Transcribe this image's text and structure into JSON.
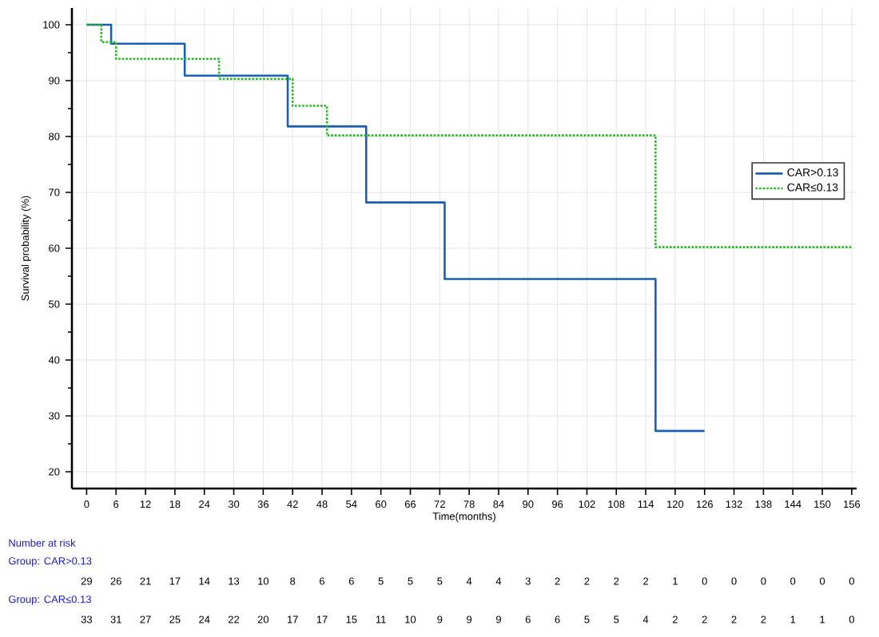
{
  "chart_data": {
    "type": "step",
    "xlabel": "Time(months)",
    "ylabel": "Survival probability (%)",
    "xlim": [
      -3,
      157
    ],
    "ylim": [
      17,
      103
    ],
    "xticks": [
      0,
      6,
      12,
      18,
      24,
      30,
      36,
      42,
      48,
      54,
      60,
      66,
      72,
      78,
      84,
      90,
      96,
      102,
      108,
      114,
      120,
      126,
      132,
      138,
      144,
      150,
      156
    ],
    "yticks": [
      20,
      {
        "value": 25,
        "label": null
      },
      30,
      {
        "value": 35,
        "label": null
      },
      40,
      {
        "value": 45,
        "label": null
      },
      50,
      {
        "value": 55,
        "label": null
      },
      60,
      {
        "value": 65,
        "label": null
      },
      70,
      {
        "value": 75,
        "label": null
      },
      80,
      {
        "value": 85,
        "label": null
      },
      90,
      {
        "value": 95,
        "label": null
      },
      100
    ],
    "grid": true,
    "legend": "right",
    "series": [
      {
        "name": "CAR>0.13",
        "color": "#1a5fb0",
        "line_style": "solid",
        "x": [
          0,
          5,
          20,
          41,
          57,
          73,
          116,
          126
        ],
        "values": [
          100,
          96.6,
          90.9,
          81.8,
          68.2,
          54.5,
          27.3,
          27.3
        ]
      },
      {
        "name": "CAR≤0.13",
        "color": "#22bb22",
        "line_style": "dotted",
        "x": [
          0,
          3,
          6,
          27,
          42,
          49,
          116,
          156
        ],
        "values": [
          100,
          96.9,
          93.9,
          90.3,
          85.5,
          80.2,
          60.2,
          60.2
        ]
      }
    ],
    "annotations": [
      "Number at risk",
      "Group: CAR>0.13",
      "29",
      "26",
      "21",
      "17",
      "14",
      "13",
      "10",
      "8",
      "6",
      "6",
      "5",
      "5",
      "5",
      "4",
      "4",
      "3",
      "2",
      "2",
      "2",
      "2",
      "1",
      "0",
      "0",
      "0",
      "0",
      "0",
      "0",
      "Group: CAR≤0.13",
      "33",
      "31",
      "27",
      "25",
      "24",
      "22",
      "20",
      "17",
      "17",
      "15",
      "11",
      "10",
      "9",
      "9",
      "9",
      "6",
      "6",
      "5",
      "5",
      "4",
      "2",
      "2",
      "2",
      "2",
      "1",
      "1",
      "0"
    ]
  }
}
